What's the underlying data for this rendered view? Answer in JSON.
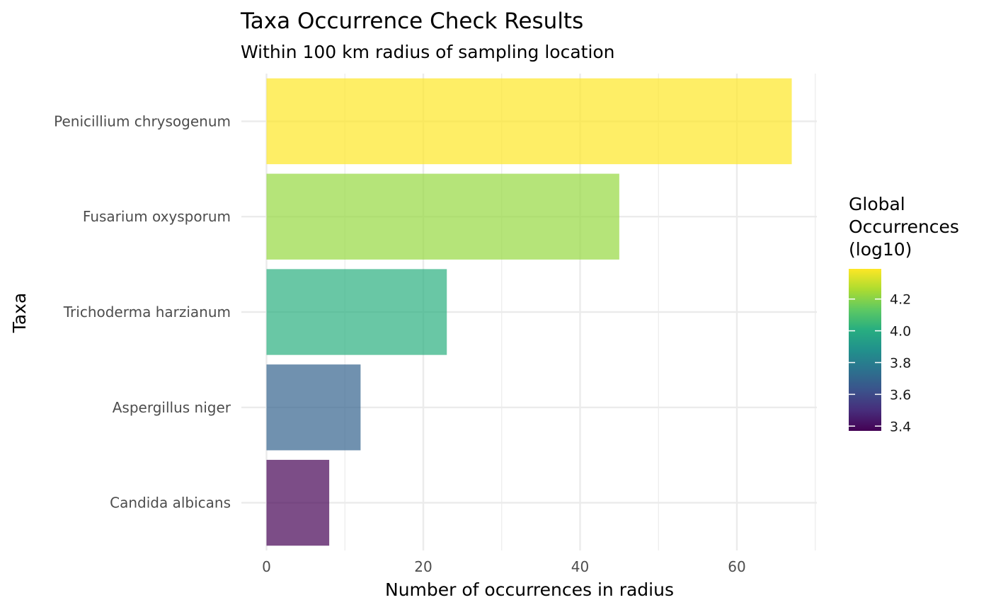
{
  "chart_data": {
    "type": "bar",
    "orientation": "horizontal",
    "title": "Taxa Occurrence Check Results",
    "subtitle": "Within 100 km radius of sampling location",
    "xlabel": "Number of occurrences in radius",
    "ylabel": "Taxa",
    "xlim": [
      0,
      70
    ],
    "x_ticks": [
      0,
      20,
      40,
      60
    ],
    "grid": true,
    "categories": [
      "Penicillium chrysogenum",
      "Fusarium oxysporum",
      "Trichoderma harzianum",
      "Aspergillus niger",
      "Candida albicans"
    ],
    "values": [
      67,
      45,
      23,
      12,
      8
    ],
    "colors": [
      "#fde725",
      "#95d840",
      "#29af7f",
      "#33638d",
      "#440154"
    ],
    "legend": {
      "title_lines": [
        "Global",
        "Occurrences",
        "(log10)"
      ],
      "position": "right",
      "ticks": [
        4.2,
        4.0,
        3.8,
        3.6,
        3.4
      ],
      "tick_labels": [
        "4.2",
        "4.0",
        "3.8",
        "3.6",
        "3.4"
      ],
      "range": [
        3.37,
        4.39
      ]
    }
  }
}
